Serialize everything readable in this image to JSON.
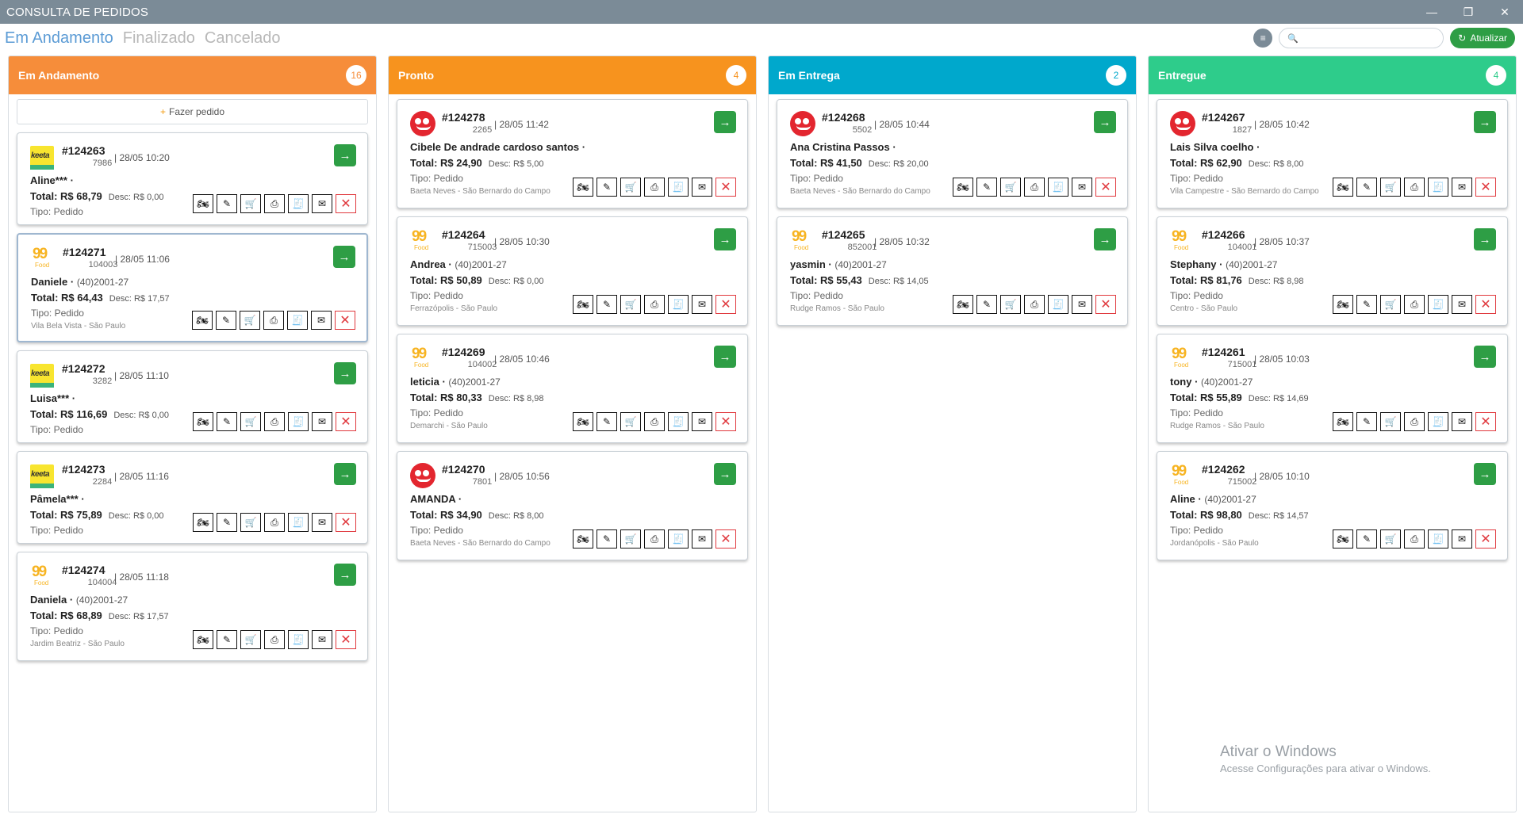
{
  "window": {
    "title": "CONSULTA DE PEDIDOS",
    "controls": {
      "minimize": "—",
      "restore": "❐",
      "close": "✕"
    }
  },
  "tabs": [
    {
      "label": "Em Andamento"
    },
    {
      "label": "Finalizado"
    },
    {
      "label": "Cancelado"
    }
  ],
  "toolbar": {
    "menu_icon": "≡",
    "search_icon": "🔍",
    "search_value": "",
    "refresh_label": "Atualizar",
    "refresh_icon": "↻"
  },
  "new_order_label": "Fazer pedido",
  "icons": {
    "go": "→",
    "moto": "🏍",
    "edit": "✎",
    "cart": "🛒",
    "print": "⎙",
    "receipt": "🧾",
    "mail": "✉",
    "delete": "✕"
  },
  "colors": {
    "em_andamento": "#f68d3a",
    "pronto": "#f7931e",
    "em_entrega": "#00a8cc",
    "entregue": "#2ecc8b",
    "accent_green": "#2e9e45",
    "tab_active": "#5b9bd5"
  },
  "columns": [
    {
      "title": "Em Andamento",
      "count": "16",
      "orders": [
        {
          "source": "keeta",
          "number": "#124263",
          "code": "7986",
          "date": "28/05 10:20",
          "name": "Aline***",
          "phone": "",
          "total": "Total: R$ 68,79",
          "desc": "Desc: R$ 0,00",
          "tipo": "Tipo: Pedido",
          "address": ""
        },
        {
          "source": "99food",
          "number": "#124271",
          "code": "104003",
          "date": "28/05 11:06",
          "name": "Daniele",
          "phone": "(40)2001-27",
          "total": "Total: R$ 64,43",
          "desc": "Desc: R$ 17,57",
          "tipo": "Tipo: Pedido",
          "address": "Vila Bela Vista - São Paulo"
        },
        {
          "source": "keeta",
          "number": "#124272",
          "code": "3282",
          "date": "28/05 11:10",
          "name": "Luisa***",
          "phone": "",
          "total": "Total: R$ 116,69",
          "desc": "Desc: R$ 0,00",
          "tipo": "Tipo: Pedido",
          "address": ""
        },
        {
          "source": "keeta",
          "number": "#124273",
          "code": "2284",
          "date": "28/05 11:16",
          "name": "Pâmela***",
          "phone": "",
          "total": "Total: R$ 75,89",
          "desc": "Desc: R$ 0,00",
          "tipo": "Tipo: Pedido",
          "address": ""
        },
        {
          "source": "99food",
          "number": "#124274",
          "code": "104004",
          "date": "28/05 11:18",
          "name": "Daniela",
          "phone": "(40)2001-27",
          "total": "Total: R$ 68,89",
          "desc": "Desc: R$ 17,57",
          "tipo": "Tipo: Pedido",
          "address": "Jardim Beatriz - São Paulo"
        }
      ]
    },
    {
      "title": "Pronto",
      "count": "4",
      "orders": [
        {
          "source": "ifood",
          "number": "#124278",
          "code": "2265",
          "date": "28/05 11:42",
          "name": "Cibele De andrade cardoso santos",
          "phone": "",
          "total": "Total: R$ 24,90",
          "desc": "Desc: R$ 5,00",
          "tipo": "Tipo: Pedido",
          "address": "Baeta Neves - São Bernardo do Campo"
        },
        {
          "source": "99food",
          "number": "#124264",
          "code": "715003",
          "date": "28/05 10:30",
          "name": "Andrea",
          "phone": "(40)2001-27",
          "total": "Total: R$ 50,89",
          "desc": "Desc: R$ 0,00",
          "tipo": "Tipo: Pedido",
          "address": "Ferrazópolis - São Paulo"
        },
        {
          "source": "99food",
          "number": "#124269",
          "code": "104002",
          "date": "28/05 10:46",
          "name": "leticia",
          "phone": "(40)2001-27",
          "total": "Total: R$ 80,33",
          "desc": "Desc: R$ 8,98",
          "tipo": "Tipo: Pedido",
          "address": "Demarchi - São Paulo"
        },
        {
          "source": "ifood",
          "number": "#124270",
          "code": "7801",
          "date": "28/05 10:56",
          "name": "AMANDA",
          "phone": "",
          "total": "Total: R$ 34,90",
          "desc": "Desc: R$ 8,00",
          "tipo": "Tipo: Pedido",
          "address": "Baeta Neves - São Bernardo do Campo"
        }
      ]
    },
    {
      "title": "Em Entrega",
      "count": "2",
      "orders": [
        {
          "source": "ifood",
          "number": "#124268",
          "code": "5502",
          "date": "28/05 10:44",
          "name": "Ana Cristina Passos",
          "phone": "",
          "total": "Total: R$ 41,50",
          "desc": "Desc: R$ 20,00",
          "tipo": "Tipo: Pedido",
          "address": "Baeta Neves - São Bernardo do Campo"
        },
        {
          "source": "99food",
          "number": "#124265",
          "code": "852001",
          "date": "28/05 10:32",
          "name": "yasmin",
          "phone": "(40)2001-27",
          "total": "Total: R$ 55,43",
          "desc": "Desc: R$ 14,05",
          "tipo": "Tipo: Pedido",
          "address": "Rudge Ramos - São Paulo"
        }
      ]
    },
    {
      "title": "Entregue",
      "count": "4",
      "orders": [
        {
          "source": "ifood",
          "number": "#124267",
          "code": "1827",
          "date": "28/05 10:42",
          "name": "Lais Silva coelho",
          "phone": "",
          "total": "Total: R$ 62,90",
          "desc": "Desc: R$ 8,00",
          "tipo": "Tipo: Pedido",
          "address": "Vila Campestre - São Bernardo do Campo"
        },
        {
          "source": "99food",
          "number": "#124266",
          "code": "104001",
          "date": "28/05 10:37",
          "name": "Stephany",
          "phone": "(40)2001-27",
          "total": "Total: R$ 81,76",
          "desc": "Desc: R$ 8,98",
          "tipo": "Tipo: Pedido",
          "address": "Centro - São Paulo"
        },
        {
          "source": "99food",
          "number": "#124261",
          "code": "715001",
          "date": "28/05 10:03",
          "name": "tony",
          "phone": "(40)2001-27",
          "total": "Total: R$ 55,89",
          "desc": "Desc: R$ 14,69",
          "tipo": "Tipo: Pedido",
          "address": "Rudge Ramos - São Paulo"
        },
        {
          "source": "99food",
          "number": "#124262",
          "code": "715002",
          "date": "28/05 10:10",
          "name": "Aline",
          "phone": "(40)2001-27",
          "total": "Total: R$ 98,80",
          "desc": "Desc: R$ 14,57",
          "tipo": "Tipo: Pedido",
          "address": "Jordanópolis - São Paulo"
        }
      ]
    }
  ],
  "logos": {
    "keeta": "keeta",
    "food99_num": "99",
    "food99_sub": "Food"
  },
  "watermark": {
    "line1": "Ativar o Windows",
    "line2": "Acesse Configurações para ativar o Windows."
  }
}
